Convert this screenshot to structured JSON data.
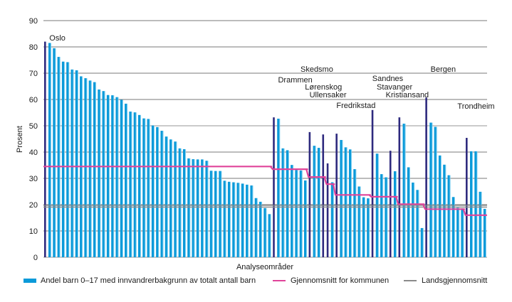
{
  "chart_data": {
    "type": "bar",
    "title": "",
    "xlabel": "Analyseområder",
    "ylabel": "Prosent",
    "ylim": [
      0,
      90
    ],
    "yticks": [
      0,
      10,
      20,
      30,
      40,
      50,
      60,
      70,
      80,
      90
    ],
    "grid": true,
    "legend_position": "bottom",
    "colors": {
      "bar": "#0b9ad9",
      "bar_highlight": "#2e2a7e",
      "municipal_avg": "#e0449a",
      "national_avg": "#8a8a8a",
      "grid": "#7a7a7a"
    },
    "series": [
      {
        "name": "Andel barn 0–17 med innvandrerbakgrunn av totalt antall barn",
        "kind": "bar",
        "values": [
          82,
          81.5,
          79.5,
          76.2,
          74.4,
          74.2,
          71.4,
          71.1,
          68.8,
          68.1,
          67.2,
          66.6,
          63.8,
          63.2,
          61.7,
          61.6,
          60.9,
          59.9,
          58.4,
          55.4,
          55.1,
          54.1,
          52.8,
          52.6,
          50.1,
          49.5,
          48.1,
          45.9,
          44.8,
          44.0,
          41.4,
          41.1,
          37.6,
          37.3,
          37.2,
          37.2,
          36.7,
          32.9,
          32.8,
          32.8,
          29.1,
          28.7,
          28.5,
          28.3,
          28.0,
          27.6,
          27.3,
          22.5,
          21.1,
          18.7,
          16.4,
          53.2,
          52.7,
          41.4,
          40.7,
          35.1,
          33.2,
          33.0,
          29.2,
          47.6,
          42.4,
          41.6,
          46.7,
          35.7,
          28.5,
          47.0,
          44.6,
          41.8,
          41.0,
          33.5,
          26.9,
          22.8,
          22.4,
          56.0,
          39.4,
          31.6,
          30.4,
          40.5,
          32.7,
          53.2,
          50.8,
          34.2,
          28.4,
          25.6,
          11.1,
          60.7,
          51.2,
          49.6,
          38.7,
          35.2,
          31.2,
          22.9,
          18.8,
          18.6,
          45.4,
          40.3,
          40.3,
          24.9,
          18.4
        ]
      },
      {
        "name": "Gjennomsnitt for kommunen",
        "kind": "step-line",
        "values": [
          34.5,
          34.5,
          34.5,
          34.5,
          34.5,
          34.5,
          34.5,
          34.5,
          34.5,
          34.5,
          34.5,
          34.5,
          34.5,
          34.5,
          34.5,
          34.5,
          34.5,
          34.5,
          34.5,
          34.5,
          34.5,
          34.5,
          34.5,
          34.5,
          34.5,
          34.5,
          34.5,
          34.5,
          34.5,
          34.5,
          34.5,
          34.5,
          34.5,
          34.5,
          34.5,
          34.5,
          34.5,
          34.5,
          34.5,
          34.5,
          34.5,
          34.5,
          34.5,
          34.5,
          34.5,
          34.5,
          34.5,
          34.5,
          34.5,
          34.5,
          34.5,
          33.5,
          33.5,
          33.5,
          33.5,
          33.5,
          33.5,
          33.5,
          33.5,
          30.5,
          30.5,
          30.5,
          30.5,
          27.8,
          27.8,
          23.7,
          23.7,
          23.7,
          23.7,
          23.7,
          23.7,
          23.7,
          23.7,
          23.0,
          23.0,
          23.0,
          23.0,
          23.0,
          23.0,
          20.2,
          20.2,
          20.2,
          20.2,
          20.2,
          20.2,
          18.3,
          18.3,
          18.3,
          18.3,
          18.3,
          18.3,
          18.3,
          18.3,
          18.3,
          16.0,
          16.0,
          16.0,
          16.0,
          16.0
        ]
      },
      {
        "name": "Landsgjennomsnitt",
        "kind": "hline",
        "value": 19.4
      }
    ],
    "highlighted_bars": [
      1,
      52,
      60,
      63,
      64,
      66,
      74,
      78,
      80,
      86,
      95
    ],
    "annotations": [
      {
        "text": "Oslo",
        "bar": 1,
        "y": 82.5
      },
      {
        "text": "Drammen",
        "bar": 52,
        "y": 66.5
      },
      {
        "text": "Skedsmo",
        "bar": 57,
        "y": 70.5
      },
      {
        "text": "Lørenskog",
        "bar": 58,
        "y": 63.8
      },
      {
        "text": "Ullensaker",
        "bar": 59,
        "y": 60.8
      },
      {
        "text": "Fredrikstad",
        "bar": 65,
        "y": 56.8
      },
      {
        "text": "Sandnes",
        "bar": 73,
        "y": 67
      },
      {
        "text": "Stavanger",
        "bar": 74,
        "y": 63.8
      },
      {
        "text": "Kristiansand",
        "bar": 76,
        "y": 60.8
      },
      {
        "text": "Bergen",
        "bar": 86,
        "y": 70.5
      },
      {
        "text": "Trondheim",
        "bar": 92,
        "y": 56.5
      }
    ]
  },
  "legend": {
    "bars": "Andel barn 0–17 med innvandrerbakgrunn av totalt antall barn",
    "municipal": "Gjennomsnitt for kommunen",
    "national": "Landsgjennomsnitt"
  }
}
